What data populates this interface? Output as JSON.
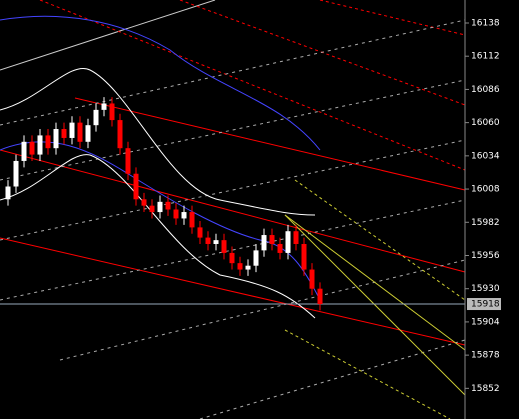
{
  "chart_data": {
    "type": "candlestick",
    "ylim": [
      15828,
      16156
    ],
    "yticks": [
      16138,
      16112,
      16086,
      16060,
      16034,
      16008,
      15982,
      15956,
      15930,
      15904,
      15878,
      15852
    ],
    "open": [
      16000,
      16010,
      16030,
      16045,
      16035,
      16050,
      16040,
      16055,
      16048,
      16060,
      16045,
      16058,
      16070,
      16075,
      16062,
      16040,
      16020,
      16000,
      15995,
      15990,
      15998,
      15992,
      15985,
      15990,
      15978,
      15970,
      15965,
      15968,
      15958,
      15950,
      15945,
      15948,
      15960,
      15972,
      15965,
      15958,
      15975,
      15965,
      15945,
      15930
    ],
    "high": [
      16015,
      16035,
      16050,
      16050,
      16055,
      16055,
      16060,
      16060,
      16065,
      16065,
      16063,
      16075,
      16080,
      16080,
      16067,
      16045,
      16025,
      16005,
      16000,
      16003,
      16003,
      15997,
      15995,
      15995,
      15983,
      15975,
      15973,
      15973,
      15963,
      15955,
      15953,
      15965,
      15977,
      15977,
      15970,
      15980,
      15980,
      15970,
      15950,
      15935
    ],
    "low": [
      15995,
      16005,
      16025,
      16030,
      16030,
      16035,
      16035,
      16043,
      16043,
      16040,
      16040,
      16053,
      16065,
      16057,
      16035,
      16015,
      15995,
      15990,
      15985,
      15985,
      15987,
      15980,
      15980,
      15973,
      15965,
      15960,
      15960,
      15953,
      15945,
      15940,
      15940,
      15943,
      15955,
      15960,
      15953,
      15953,
      15960,
      15940,
      15925,
      15913
    ],
    "close": [
      16010,
      16030,
      16045,
      16035,
      16050,
      16040,
      16055,
      16048,
      16060,
      16045,
      16058,
      16070,
      16075,
      16062,
      16040,
      16020,
      16000,
      15995,
      15990,
      15998,
      15992,
      15985,
      15990,
      15978,
      15970,
      15965,
      15968,
      15958,
      15950,
      15945,
      15948,
      15960,
      15972,
      15965,
      15958,
      15975,
      15965,
      15945,
      15930,
      15918
    ],
    "up_color": "#ffffff",
    "down_color": "#ff0000",
    "last_price": 15918
  }
}
